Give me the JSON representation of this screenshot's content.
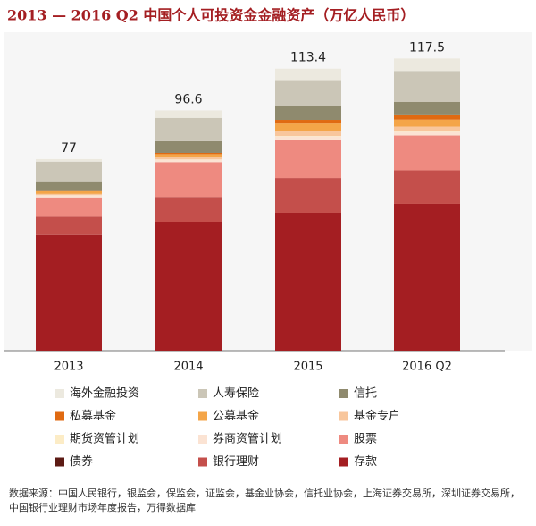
{
  "chart_data": {
    "type": "stacked-bar",
    "title": "2013 — 2016 Q2 中国个人可投资金金融资产（万亿人民币）",
    "categories": [
      "2013",
      "2014",
      "2015",
      "2016 Q2"
    ],
    "totals": [
      77,
      96.6,
      113.4,
      117.5
    ],
    "series": [
      {
        "name": "海外金融投资",
        "color": "#ece9df",
        "values": [
          1.0,
          3.0,
          4.6,
          5.0
        ]
      },
      {
        "name": "人寿保险",
        "color": "#cbc6b7",
        "values": [
          7.9,
          9.4,
          10.5,
          12.5
        ]
      },
      {
        "name": "信托",
        "color": "#8f8a6e",
        "values": [
          3.6,
          4.7,
          5.5,
          5.0
        ]
      },
      {
        "name": "私募基金",
        "color": "#e06a12",
        "values": [
          0.3,
          0.5,
          1.5,
          2.1
        ]
      },
      {
        "name": "公募基金",
        "color": "#f4a548",
        "values": [
          1.2,
          1.3,
          3.0,
          2.8
        ]
      },
      {
        "name": "基金专户",
        "color": "#f8c69c",
        "values": [
          0.5,
          0.8,
          2.0,
          2.0
        ]
      },
      {
        "name": "期货资管计划",
        "color": "#fcecc6",
        "values": [
          0.1,
          0.1,
          0.2,
          0.2
        ]
      },
      {
        "name": "券商资管计划",
        "color": "#fbe3d3",
        "values": [
          0.8,
          1.0,
          1.2,
          1.4
        ]
      },
      {
        "name": "股票",
        "color": "#ee8a80",
        "values": [
          7.8,
          14.0,
          15.5,
          14.0
        ]
      },
      {
        "name": "债券",
        "color": "#5c1a14",
        "values": [
          0,
          0,
          0,
          0
        ]
      },
      {
        "name": "银行理财",
        "color": "#c44f4b",
        "values": [
          7.3,
          10.0,
          14.0,
          13.5
        ]
      },
      {
        "name": "存款",
        "color": "#a41e22",
        "values": [
          46.5,
          51.8,
          55.4,
          59.0
        ]
      }
    ],
    "source": "数据来源：中国人民银行，银监会，保监会，证监会，基金业协会，信托业协会，上海证券交易所，深圳证券交易所，中国银行业理财市场年度报告，万得数据库"
  }
}
